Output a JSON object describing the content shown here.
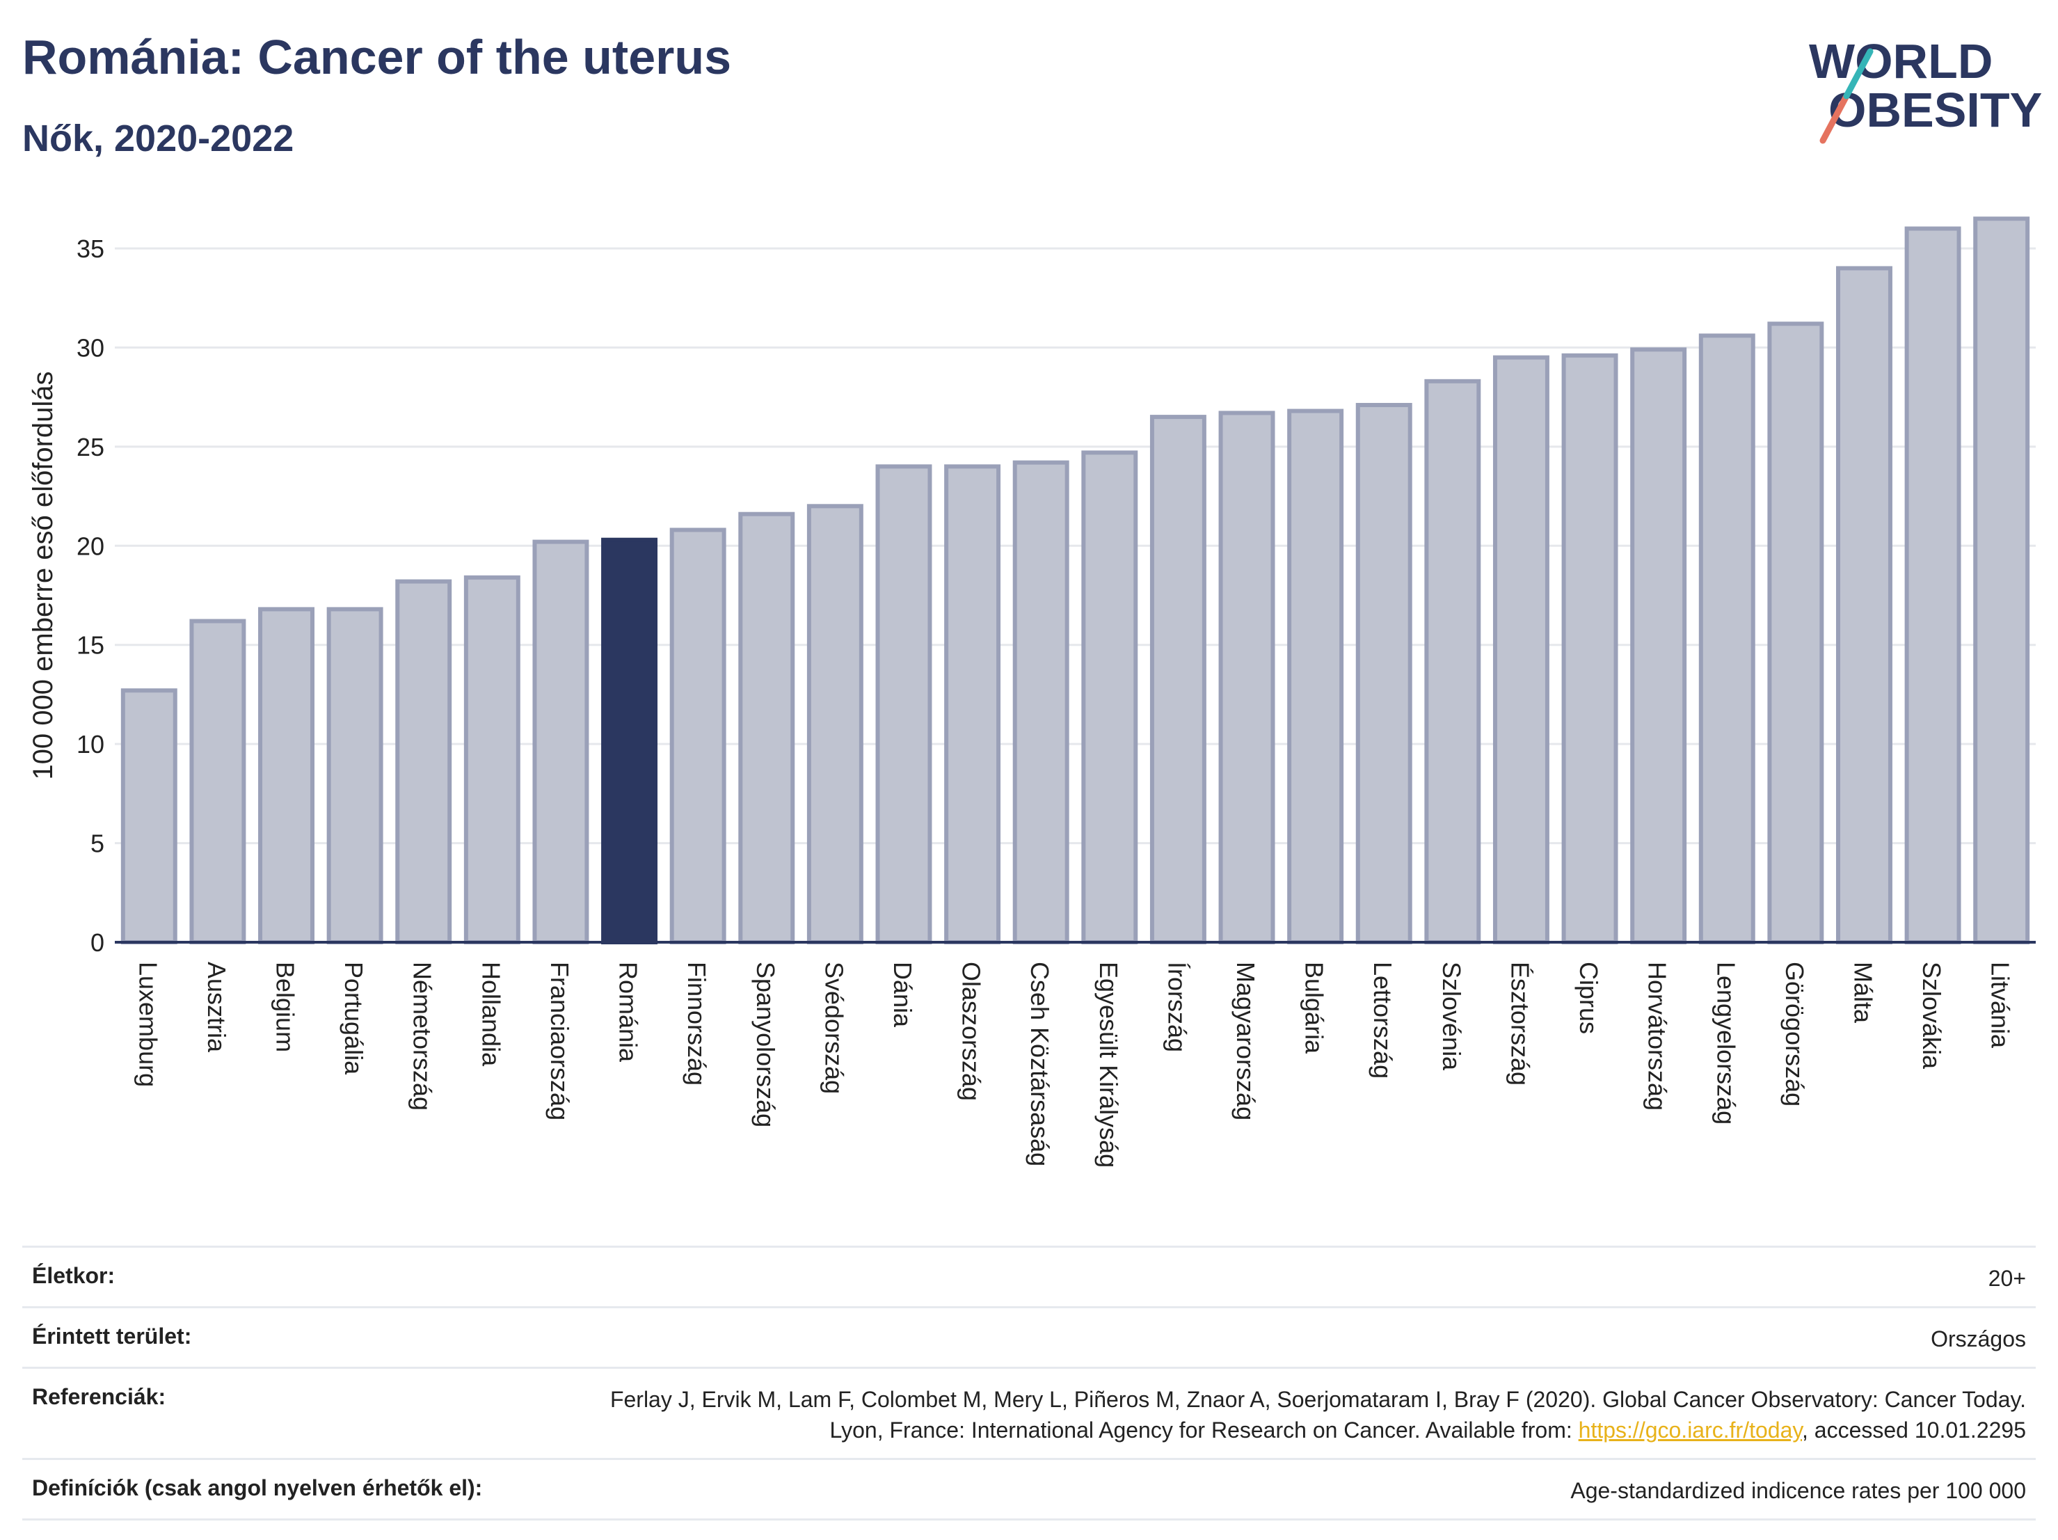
{
  "header": {
    "title": "Románia: Cancer of the uterus",
    "subtitle": "Nők, 2020-2022"
  },
  "logo": {
    "line1": "WORLD",
    "line2": "OBESITY"
  },
  "colors": {
    "bar": "#bfc3d0",
    "bar_stroke": "#9aa0b8",
    "highlight": "#2b3760",
    "title": "#2b3760",
    "link": "#e8b21a"
  },
  "chart_data": {
    "type": "bar",
    "title": "Románia: Cancer of the uterus",
    "subtitle": "Nők, 2020-2022",
    "xlabel": "",
    "ylabel": "100 000 emberre eső előfordulás",
    "ylim": [
      0,
      37
    ],
    "yticks": [
      0,
      5,
      10,
      15,
      20,
      25,
      30,
      35
    ],
    "grid": true,
    "highlight": "Románia",
    "categories": [
      "Luxemburg",
      "Ausztria",
      "Belgium",
      "Portugália",
      "Németország",
      "Hollandia",
      "Franciaország",
      "Románia",
      "Finnország",
      "Spanyolország",
      "Svédország",
      "Dánia",
      "Olaszország",
      "Cseh Köztársaság",
      "Egyesült Királyság",
      "Írország",
      "Magyarország",
      "Bulgária",
      "Lettország",
      "Szlovénia",
      "Észtország",
      "Ciprus",
      "Horvátország",
      "Lengyelország",
      "Görögország",
      "Málta",
      "Szlovákia",
      "Litvánia"
    ],
    "values": [
      12.7,
      16.2,
      16.8,
      16.8,
      18.2,
      18.4,
      20.2,
      20.3,
      20.8,
      21.6,
      22.0,
      24.0,
      24.0,
      24.2,
      24.7,
      26.5,
      26.7,
      26.8,
      27.1,
      28.3,
      29.5,
      29.6,
      29.9,
      30.6,
      31.2,
      34.0,
      36.0,
      36.5
    ]
  },
  "footer": {
    "rows": [
      {
        "label": "Életkor:",
        "value": "20+"
      },
      {
        "label": "Érintett terület:",
        "value": "Országos"
      },
      {
        "label": "Referenciák:",
        "value_pre": "Ferlay J, Ervik M, Lam F, Colombet M, Mery L, Piñeros M, Znaor A, Soerjomataram I, Bray F (2020). Global Cancer Observatory: Cancer Today. Lyon, France: International Agency for Research on Cancer. Available from: ",
        "link": "https://gco.iarc.fr/today",
        "value_post": ", accessed 10.01.2295"
      },
      {
        "label": "Definíciók (csak angol nyelven érhetők el):",
        "value": "Age-standardized indicence rates per 100 000"
      }
    ]
  }
}
